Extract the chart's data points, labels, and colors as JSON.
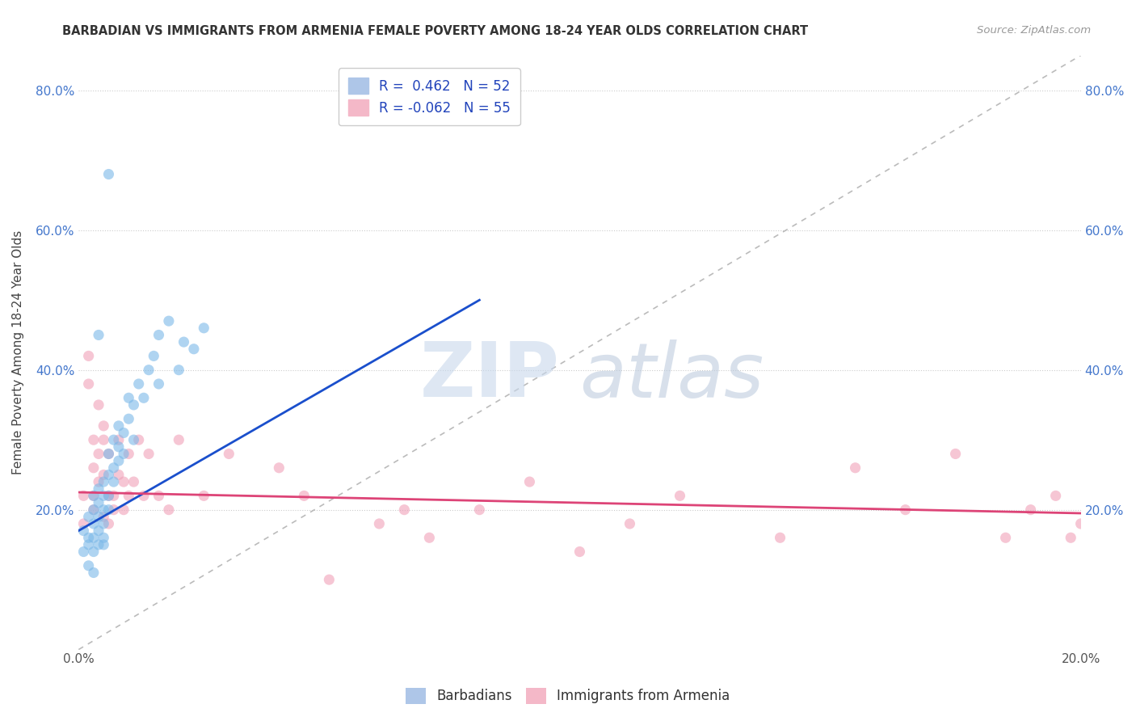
{
  "title": "BARBADIAN VS IMMIGRANTS FROM ARMENIA FEMALE POVERTY AMONG 18-24 YEAR OLDS CORRELATION CHART",
  "source": "Source: ZipAtlas.com",
  "ylabel": "Female Poverty Among 18-24 Year Olds",
  "xlim": [
    0.0,
    0.2
  ],
  "ylim": [
    0.0,
    0.85
  ],
  "yticks": [
    0.0,
    0.2,
    0.4,
    0.6,
    0.8
  ],
  "ytick_labels": [
    "",
    "20.0%",
    "40.0%",
    "60.0%",
    "80.0%"
  ],
  "xticks": [
    0.0,
    0.05,
    0.1,
    0.15,
    0.2
  ],
  "xtick_labels": [
    "0.0%",
    "",
    "",
    "",
    "20.0%"
  ],
  "blue_color": "#7bb8e8",
  "pink_color": "#f0a0b8",
  "trend_blue_color": "#1a4fcc",
  "trend_pink_color": "#dd4477",
  "diagonal_color": "#bbbbbb",
  "background_color": "#ffffff",
  "grid_color": "#e0e0e0",
  "watermark_zip": "ZIP",
  "watermark_atlas": "atlas",
  "blue_scatter_x": [
    0.001,
    0.001,
    0.002,
    0.002,
    0.002,
    0.002,
    0.003,
    0.003,
    0.003,
    0.003,
    0.003,
    0.003,
    0.004,
    0.004,
    0.004,
    0.004,
    0.004,
    0.005,
    0.005,
    0.005,
    0.005,
    0.005,
    0.005,
    0.006,
    0.006,
    0.006,
    0.006,
    0.007,
    0.007,
    0.007,
    0.008,
    0.008,
    0.008,
    0.009,
    0.009,
    0.01,
    0.01,
    0.011,
    0.011,
    0.012,
    0.013,
    0.014,
    0.015,
    0.016,
    0.016,
    0.018,
    0.02,
    0.021,
    0.023,
    0.025,
    0.004,
    0.006
  ],
  "blue_scatter_y": [
    0.17,
    0.14,
    0.19,
    0.15,
    0.16,
    0.12,
    0.18,
    0.2,
    0.22,
    0.16,
    0.14,
    0.11,
    0.21,
    0.19,
    0.17,
    0.23,
    0.15,
    0.22,
    0.24,
    0.18,
    0.2,
    0.15,
    0.16,
    0.25,
    0.28,
    0.22,
    0.2,
    0.3,
    0.26,
    0.24,
    0.29,
    0.32,
    0.27,
    0.31,
    0.28,
    0.33,
    0.36,
    0.35,
    0.3,
    0.38,
    0.36,
    0.4,
    0.42,
    0.45,
    0.38,
    0.47,
    0.4,
    0.44,
    0.43,
    0.46,
    0.45,
    0.68
  ],
  "pink_scatter_x": [
    0.001,
    0.001,
    0.002,
    0.002,
    0.003,
    0.003,
    0.003,
    0.003,
    0.004,
    0.004,
    0.004,
    0.005,
    0.005,
    0.005,
    0.005,
    0.006,
    0.006,
    0.006,
    0.007,
    0.007,
    0.008,
    0.008,
    0.009,
    0.009,
    0.01,
    0.01,
    0.011,
    0.012,
    0.013,
    0.014,
    0.016,
    0.018,
    0.02,
    0.025,
    0.03,
    0.04,
    0.045,
    0.05,
    0.06,
    0.065,
    0.07,
    0.08,
    0.09,
    0.1,
    0.11,
    0.12,
    0.14,
    0.155,
    0.165,
    0.175,
    0.185,
    0.19,
    0.195,
    0.198,
    0.2
  ],
  "pink_scatter_y": [
    0.22,
    0.18,
    0.38,
    0.42,
    0.26,
    0.3,
    0.22,
    0.2,
    0.28,
    0.35,
    0.24,
    0.3,
    0.25,
    0.32,
    0.19,
    0.22,
    0.28,
    0.18,
    0.22,
    0.2,
    0.25,
    0.3,
    0.24,
    0.2,
    0.22,
    0.28,
    0.24,
    0.3,
    0.22,
    0.28,
    0.22,
    0.2,
    0.3,
    0.22,
    0.28,
    0.26,
    0.22,
    0.1,
    0.18,
    0.2,
    0.16,
    0.2,
    0.24,
    0.14,
    0.18,
    0.22,
    0.16,
    0.26,
    0.2,
    0.28,
    0.16,
    0.2,
    0.22,
    0.16,
    0.18
  ],
  "blue_trend_x0": 0.0,
  "blue_trend_y0": 0.17,
  "blue_trend_x1": 0.08,
  "blue_trend_y1": 0.5,
  "pink_trend_x0": 0.0,
  "pink_trend_y0": 0.225,
  "pink_trend_x1": 0.2,
  "pink_trend_y1": 0.195
}
